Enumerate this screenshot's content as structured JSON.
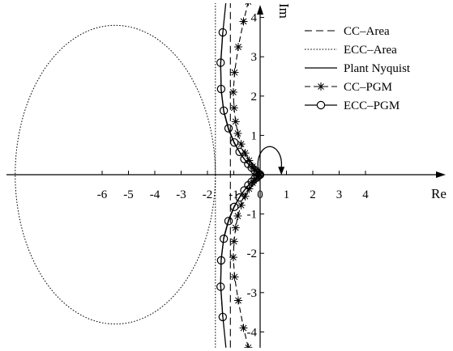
{
  "chart_data": {
    "type": "line",
    "xlabel": "Re",
    "ylabel": "Im",
    "xlim": [
      -6.5,
      4.8
    ],
    "ylim": [
      -4.4,
      4.4
    ],
    "grid": false,
    "legend_position": "top-right",
    "x_ticks": [
      {
        "value": -6,
        "label": "-6"
      },
      {
        "value": -5,
        "label": "-5"
      },
      {
        "value": -4,
        "label": "-4"
      },
      {
        "value": -3,
        "label": "-3"
      },
      {
        "value": -2,
        "label": "-2"
      },
      {
        "value": -1,
        "label": "-1"
      },
      {
        "value": 0,
        "label": "0"
      },
      {
        "value": 1,
        "label": "1"
      },
      {
        "value": 2,
        "label": "2"
      },
      {
        "value": 3,
        "label": "3"
      },
      {
        "value": 4,
        "label": "4"
      }
    ],
    "y_ticks": [
      {
        "value": 4,
        "label": "4"
      },
      {
        "value": 3,
        "label": "3"
      },
      {
        "value": 2,
        "label": "2"
      },
      {
        "value": 1,
        "label": "1"
      },
      {
        "value": -1,
        "label": "-1"
      },
      {
        "value": -2,
        "label": "-2"
      },
      {
        "value": -3,
        "label": "-3"
      },
      {
        "value": -4,
        "label": "-4"
      }
    ],
    "series": [
      {
        "name": "CC–Area",
        "style": "dashed",
        "color": "#000000",
        "points": [
          [
            -1.13,
            -4.4
          ],
          [
            -1.13,
            4.4
          ]
        ]
      },
      {
        "name": "ECC–Area",
        "style": "dotted",
        "color": "#000000",
        "boundary_line_points": [
          [
            -1.7,
            -4.4
          ],
          [
            -1.7,
            4.4
          ]
        ],
        "circle": {
          "center": [
            -5.5,
            0
          ],
          "radius": 3.8
        }
      },
      {
        "name": "Plant Nyquist",
        "style": "solid",
        "color": "#000000",
        "points": [
          [
            -1.3,
            4.4
          ],
          [
            -1.42,
            3.6
          ],
          [
            -1.5,
            2.8
          ],
          [
            -1.48,
            2.15
          ],
          [
            -1.38,
            1.6
          ],
          [
            -1.2,
            1.15
          ],
          [
            -0.98,
            0.8
          ],
          [
            -0.72,
            0.5
          ],
          [
            -0.45,
            0.27
          ],
          [
            -0.22,
            0.12
          ],
          [
            -0.06,
            0.03
          ],
          [
            0,
            0
          ],
          [
            -0.06,
            -0.03
          ],
          [
            -0.22,
            -0.12
          ],
          [
            -0.45,
            -0.27
          ],
          [
            -0.72,
            -0.5
          ],
          [
            -0.98,
            -0.8
          ],
          [
            -1.2,
            -1.15
          ],
          [
            -1.38,
            -1.6
          ],
          [
            -1.48,
            -2.15
          ],
          [
            -1.5,
            -2.8
          ],
          [
            -1.42,
            -3.6
          ],
          [
            -1.3,
            -4.4
          ]
        ],
        "closing_arc": {
          "center": [
            0.4,
            0
          ],
          "radius": 0.45
        }
      },
      {
        "name": "CC–PGM",
        "style": "dashed-with-stars",
        "color": "#000000",
        "points": [
          [
            -0.45,
            4.4
          ],
          [
            -0.63,
            3.9
          ],
          [
            -0.83,
            3.25
          ],
          [
            -0.97,
            2.6
          ],
          [
            -1.02,
            2.1
          ],
          [
            -0.99,
            1.7
          ],
          [
            -0.93,
            1.35
          ],
          [
            -0.85,
            1.05
          ],
          [
            -0.72,
            0.78
          ],
          [
            -0.57,
            0.55
          ],
          [
            -0.42,
            0.36
          ],
          [
            -0.28,
            0.21
          ],
          [
            -0.15,
            0.1
          ],
          [
            -0.05,
            0.03
          ],
          [
            0,
            0
          ],
          [
            -0.05,
            -0.03
          ],
          [
            -0.15,
            -0.1
          ],
          [
            -0.28,
            -0.21
          ],
          [
            -0.42,
            -0.36
          ],
          [
            -0.57,
            -0.55
          ],
          [
            -0.72,
            -0.78
          ],
          [
            -0.85,
            -1.05
          ],
          [
            -0.93,
            -1.35
          ],
          [
            -0.99,
            -1.7
          ],
          [
            -1.02,
            -2.1
          ],
          [
            -0.97,
            -2.6
          ],
          [
            -0.83,
            -3.2
          ],
          [
            -0.63,
            -3.9
          ],
          [
            -0.45,
            -4.4
          ]
        ]
      },
      {
        "name": "ECC–PGM",
        "style": "solid-with-circles",
        "color": "#000000",
        "points": [
          [
            -1.42,
            3.62
          ],
          [
            -1.5,
            2.85
          ],
          [
            -1.48,
            2.18
          ],
          [
            -1.38,
            1.63
          ],
          [
            -1.2,
            1.18
          ],
          [
            -0.98,
            0.82
          ],
          [
            -0.78,
            0.58
          ],
          [
            -0.6,
            0.4
          ],
          [
            -0.45,
            0.27
          ],
          [
            -0.32,
            0.18
          ],
          [
            -0.2,
            0.1
          ],
          [
            -0.1,
            0.05
          ],
          [
            -0.03,
            0.01
          ],
          [
            0,
            0
          ],
          [
            -0.03,
            -0.01
          ],
          [
            -0.1,
            -0.05
          ],
          [
            -0.2,
            -0.1
          ],
          [
            -0.32,
            -0.18
          ],
          [
            -0.45,
            -0.27
          ],
          [
            -0.6,
            -0.4
          ],
          [
            -0.78,
            -0.58
          ],
          [
            -0.98,
            -0.82
          ],
          [
            -1.2,
            -1.18
          ],
          [
            -1.38,
            -1.63
          ],
          [
            -1.48,
            -2.18
          ],
          [
            -1.5,
            -2.85
          ],
          [
            -1.42,
            -3.62
          ]
        ]
      }
    ]
  }
}
